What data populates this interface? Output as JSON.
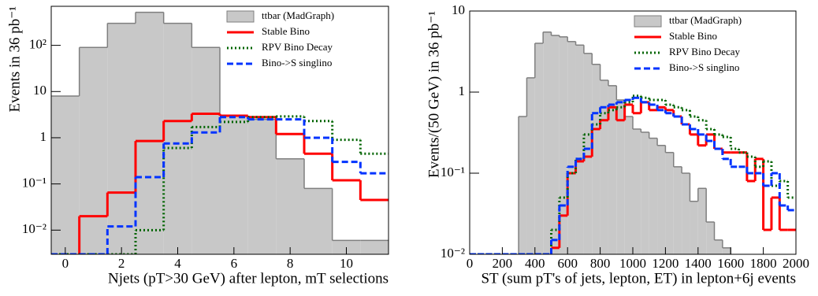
{
  "chart_data": [
    {
      "type": "histogram",
      "log_y": true,
      "x_label": "Njets (pT>30 GeV) after lepton, mT selections",
      "y_label": "Events in 36 pb⁻¹",
      "bins": [
        -0.5,
        0.5,
        1.5,
        2.5,
        3.5,
        4.5,
        5.5,
        6.5,
        7.5,
        8.5,
        9.5,
        10.5,
        11.5
      ],
      "xlim": [
        -0.5,
        11.5
      ],
      "xticks": [
        0,
        2,
        4,
        6,
        8,
        10
      ],
      "ylim": [
        0.003,
        700
      ],
      "yticks": [
        {
          "value": 0.01,
          "label": "10⁻²"
        },
        {
          "value": 0.1,
          "label": "10⁻¹"
        },
        1,
        10,
        {
          "value": 100,
          "label": "10²"
        }
      ],
      "legend": "upper right",
      "series": [
        {
          "name": "ttbar (MadGraph)",
          "color": "#7f7f7f",
          "fill": "#c8c8c8",
          "dash": "solid",
          "values": [
            8,
            90,
            300,
            520,
            300,
            90,
            3,
            2.5,
            0.35,
            0.08,
            0.006,
            0.006
          ]
        },
        {
          "name": "Stable Bino",
          "color": "#ff0000",
          "dash": "solid",
          "values": [
            0,
            0.02,
            0.065,
            0.85,
            2.3,
            3.3,
            3.0,
            2.8,
            1.2,
            0.45,
            0.12,
            0.045
          ]
        },
        {
          "name": "RPV Bino Decay",
          "color": "#006400",
          "dash": "dotted",
          "values": [
            0.003,
            0.003,
            0.003,
            0.01,
            0.6,
            1.7,
            2.2,
            2.8,
            2.9,
            2.3,
            0.9,
            0.45
          ]
        },
        {
          "name": "Bino->S singlino",
          "color": "#0033ff",
          "dash": "dashed",
          "values": [
            0.003,
            0.003,
            0.012,
            0.14,
            0.75,
            1.3,
            2.8,
            2.5,
            2.5,
            1.0,
            0.3,
            0.17
          ]
        }
      ]
    },
    {
      "type": "histogram",
      "log_y": true,
      "x_label": "ST (sum pT's of jets, lepton, ET) in lepton+6j events",
      "y_label": "Events/(50 GeV) in 36 pb⁻¹",
      "bins": [
        0,
        50,
        100,
        150,
        200,
        250,
        300,
        350,
        400,
        450,
        500,
        550,
        600,
        650,
        700,
        750,
        800,
        850,
        900,
        950,
        1000,
        1050,
        1100,
        1150,
        1200,
        1250,
        1300,
        1350,
        1400,
        1450,
        1500,
        1550,
        1600,
        1650,
        1700,
        1750,
        1800,
        1850,
        1900,
        1950,
        2000
      ],
      "xlim": [
        0,
        2000
      ],
      "xticks": [
        0,
        200,
        400,
        600,
        800,
        1000,
        1200,
        1400,
        1600,
        1800,
        2000
      ],
      "ylim": [
        0.01,
        10
      ],
      "yticks": [
        {
          "value": 0.01,
          "label": "10⁻²"
        },
        {
          "value": 0.1,
          "label": "10⁻¹"
        },
        1,
        10
      ],
      "legend": "upper right",
      "series": [
        {
          "name": "ttbar (MadGraph)",
          "color": "#7f7f7f",
          "fill": "#c8c8c8",
          "dash": "solid",
          "values": [
            0,
            0,
            0,
            0,
            0,
            0,
            0.5,
            1.5,
            4,
            5.5,
            5.0,
            4.8,
            4.2,
            3.8,
            3.0,
            2.2,
            1.4,
            1.2,
            0.8,
            0.5,
            0.35,
            0.32,
            0.27,
            0.22,
            0.18,
            0.12,
            0.1,
            0.045,
            0.065,
            0.025,
            0.015,
            0.012,
            0.009,
            0,
            0,
            0,
            0,
            0,
            0,
            0
          ]
        },
        {
          "name": "Stable Bino",
          "color": "#ff0000",
          "dash": "solid",
          "values": [
            0,
            0,
            0,
            0,
            0,
            0,
            0,
            0,
            0,
            0.009,
            0.012,
            0.03,
            0.1,
            0.14,
            0.16,
            0.35,
            0.45,
            0.65,
            0.45,
            0.7,
            0.55,
            0.75,
            0.6,
            0.65,
            0.6,
            0.5,
            0.4,
            0.3,
            0.22,
            0.3,
            0.2,
            0.18,
            0.18,
            0.18,
            0.08,
            0.15,
            0.02,
            0.05,
            0.02,
            0.02
          ]
        },
        {
          "name": "RPV Bino Decay",
          "color": "#006400",
          "dash": "dotted",
          "values": [
            0.01,
            0.01,
            0.01,
            0.01,
            0.01,
            0.01,
            0.01,
            0.01,
            0.01,
            0.01,
            0.02,
            0.05,
            0.1,
            0.15,
            0.3,
            0.4,
            0.55,
            0.6,
            0.65,
            0.75,
            0.9,
            0.85,
            0.8,
            0.8,
            0.7,
            0.65,
            0.6,
            0.5,
            0.45,
            0.35,
            0.3,
            0.28,
            0.2,
            0.18,
            0.16,
            0.12,
            0.14,
            0.07,
            0.08,
            0.05
          ]
        },
        {
          "name": "Bino->S singlino",
          "color": "#0033ff",
          "dash": "dashed",
          "values": [
            0.01,
            0.01,
            0.01,
            0.01,
            0.01,
            0.01,
            0.01,
            0.01,
            0.01,
            0.01,
            0.015,
            0.04,
            0.12,
            0.15,
            0.2,
            0.55,
            0.65,
            0.7,
            0.75,
            0.8,
            0.85,
            0.75,
            0.7,
            0.6,
            0.55,
            0.5,
            0.4,
            0.35,
            0.3,
            0.25,
            0.2,
            0.15,
            0.12,
            0.12,
            0.1,
            0.1,
            0.07,
            0.1,
            0.04,
            0.035
          ]
        }
      ]
    }
  ]
}
